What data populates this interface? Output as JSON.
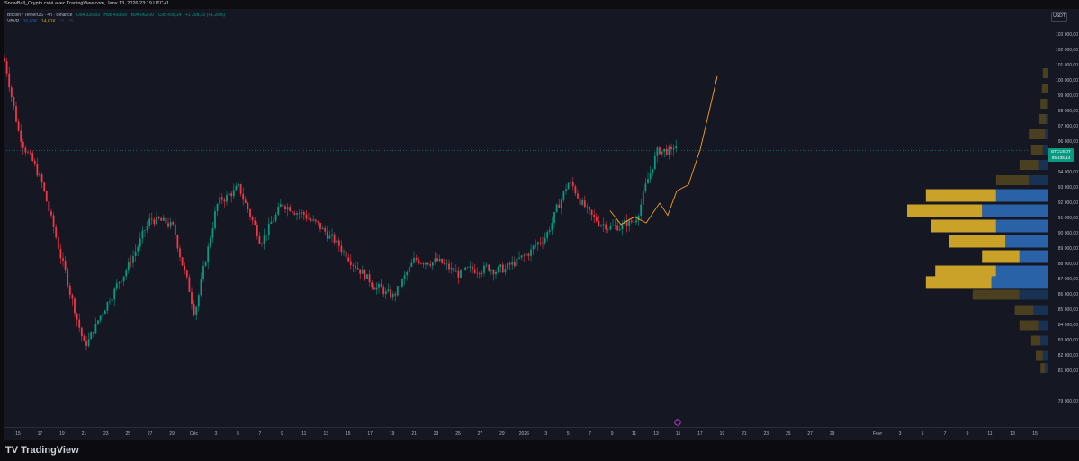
{
  "window": {
    "title": "SnowBall_Crypto créé avec TradingView.com, Janv 13, 2026 23:19 UTC+1"
  },
  "legend": {
    "symbol": "Bitcoin / TetherUS · 4h · Binance",
    "open": "O94 326,83",
    "high": "H96 493,00",
    "low": "B94 062,00",
    "close": "C95 435,14",
    "change": "+1 208,30 (+1,28%)",
    "vbvp_label": "VBVP",
    "vbvp_v1": "16,60K",
    "vbvp_v2": "14,61K",
    "vbvp_v3": "31,17K"
  },
  "price_scale": {
    "currency": "USDT",
    "labels": [
      "103 000,00",
      "102 000,00",
      "101 000,00",
      "100 000,00",
      "99 000,00",
      "98 000,00",
      "97 000,00",
      "96 000,00",
      "94 000,00",
      "93 000,00",
      "92 000,00",
      "91 000,00",
      "90 000,00",
      "89 000,00",
      "88 000,00",
      "87 000,00",
      "86 000,00",
      "85 000,00",
      "84 000,00",
      "83 000,00",
      "82 000,00",
      "81 000,00",
      "79 000,00"
    ],
    "badge_symbol": "BTCUSDT",
    "badge_price": "95 435,14",
    "badge_countdown": "01:40:25"
  },
  "time_scale": {
    "labels": [
      "15",
      "17",
      "19",
      "21",
      "23",
      "25",
      "27",
      "29",
      "Déc",
      "3",
      "5",
      "7",
      "9",
      "11",
      "13",
      "15",
      "17",
      "19",
      "21",
      "23",
      "25",
      "27",
      "29",
      "2026",
      "3",
      "5",
      "7",
      "9",
      "11",
      "13",
      "15",
      "17",
      "19",
      "21",
      "23",
      "25",
      "27",
      "29",
      "Févr",
      "3",
      "5",
      "7",
      "9",
      "11",
      "13",
      "15"
    ]
  },
  "footer": {
    "brand": "TradingView",
    "logo_glyph": "TV"
  },
  "colors": {
    "up": "#089981",
    "down": "#f23645",
    "projection": "#f7a21b",
    "vp_up": "#2962a6",
    "vp_down": "#c9a227",
    "vp_up_dim": "#173252",
    "vp_down_dim": "#4a3f1e",
    "price_line": "#089981"
  },
  "chart_data": {
    "type": "candlestick",
    "title": "Bitcoin / TetherUS · 4h · Binance",
    "y_range": [
      79000,
      103000
    ],
    "last_price": 95435.14,
    "price_path": [
      {
        "x": "15",
        "y": 96500
      },
      {
        "x": "17",
        "y": 93500
      },
      {
        "x": "19",
        "y": 88000
      },
      {
        "x": "21",
        "y": 82500
      },
      {
        "x": "23",
        "y": 85500
      },
      {
        "x": "25",
        "y": 88000
      },
      {
        "x": "27",
        "y": 91000
      },
      {
        "x": "29",
        "y": 90500
      },
      {
        "x": "Déc",
        "y": 84800
      },
      {
        "x": "3",
        "y": 92000
      },
      {
        "x": "5",
        "y": 93000
      },
      {
        "x": "7",
        "y": 89500
      },
      {
        "x": "9",
        "y": 92000
      },
      {
        "x": "11",
        "y": 91200
      },
      {
        "x": "13",
        "y": 90000
      },
      {
        "x": "15",
        "y": 88500
      },
      {
        "x": "17",
        "y": 86800
      },
      {
        "x": "19",
        "y": 85800
      },
      {
        "x": "21",
        "y": 88300
      },
      {
        "x": "23",
        "y": 88200
      },
      {
        "x": "25",
        "y": 87300
      },
      {
        "x": "27",
        "y": 87800
      },
      {
        "x": "29",
        "y": 87600
      },
      {
        "x": "2026",
        "y": 88500
      },
      {
        "x": "3",
        "y": 90000
      },
      {
        "x": "5",
        "y": 93500
      },
      {
        "x": "7",
        "y": 91000
      },
      {
        "x": "9",
        "y": 90400
      },
      {
        "x": "11",
        "y": 90800
      },
      {
        "x": "13",
        "y": 95435
      }
    ],
    "projection": [
      {
        "x": "7",
        "y": 91500
      },
      {
        "x": "9",
        "y": 91000
      },
      {
        "x": "11",
        "y": 91200
      },
      {
        "x": "13",
        "y": 93000
      },
      {
        "x": "15",
        "y": 95000
      },
      {
        "x": "17",
        "y": 100300
      }
    ],
    "volume_profile": [
      {
        "price": 100500,
        "up": 0,
        "down": 1,
        "dim": true
      },
      {
        "price": 99500,
        "up": 0,
        "down": 1.2,
        "dim": true
      },
      {
        "price": 98500,
        "up": 0.2,
        "down": 1.3,
        "dim": true
      },
      {
        "price": 97500,
        "up": 0.3,
        "down": 1.5,
        "dim": true
      },
      {
        "price": 96500,
        "up": 0.5,
        "down": 3.5,
        "dim": true
      },
      {
        "price": 95500,
        "up": 1,
        "down": 2.5,
        "dim": true
      },
      {
        "price": 94500,
        "up": 2,
        "down": 4,
        "dim": true
      },
      {
        "price": 93500,
        "up": 4,
        "down": 7,
        "dim": true
      },
      {
        "price": 92500,
        "up": 11,
        "down": 15,
        "dim": false
      },
      {
        "price": 91500,
        "up": 14,
        "down": 16,
        "dim": false
      },
      {
        "price": 90500,
        "up": 11,
        "down": 14,
        "dim": false
      },
      {
        "price": 89500,
        "up": 9,
        "down": 12,
        "dim": false
      },
      {
        "price": 88500,
        "up": 6,
        "down": 8,
        "dim": false
      },
      {
        "price": 87500,
        "up": 11,
        "down": 13,
        "dim": false
      },
      {
        "price": 86800,
        "up": 12,
        "down": 14,
        "dim": false
      },
      {
        "price": 86000,
        "up": 6,
        "down": 10,
        "dim": true
      },
      {
        "price": 85000,
        "up": 3,
        "down": 4,
        "dim": true
      },
      {
        "price": 84000,
        "up": 2,
        "down": 4,
        "dim": true
      },
      {
        "price": 83000,
        "up": 1.5,
        "down": 2,
        "dim": true
      },
      {
        "price": 82000,
        "up": 1,
        "down": 1.5,
        "dim": true
      },
      {
        "price": 81200,
        "up": 0.5,
        "down": 1,
        "dim": true
      }
    ]
  }
}
